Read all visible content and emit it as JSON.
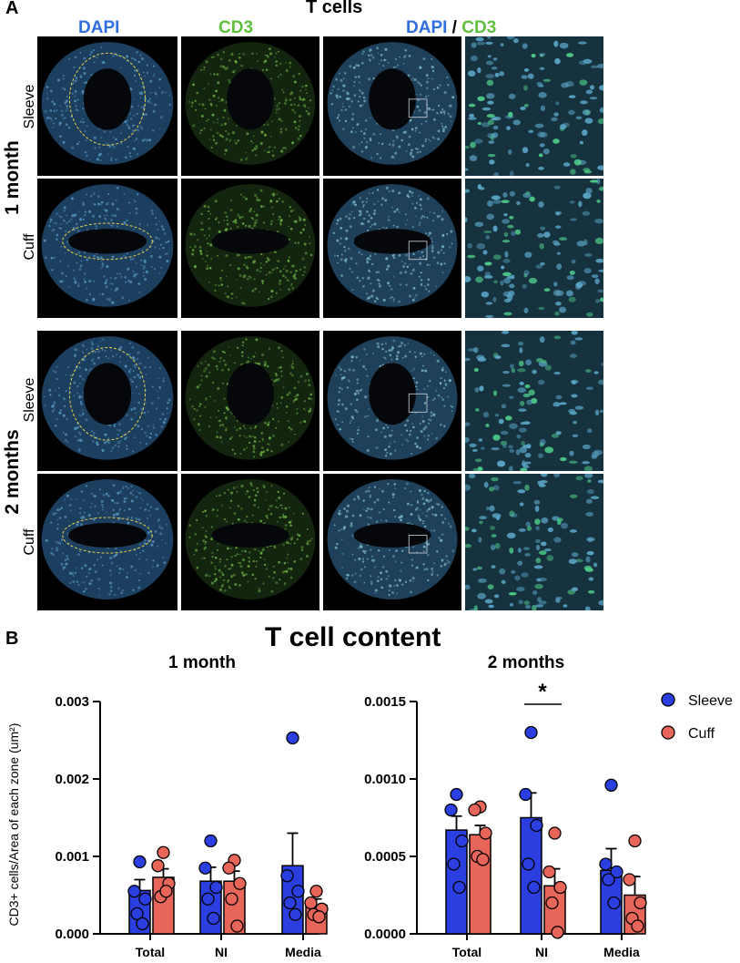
{
  "panel_a": {
    "letter": "A",
    "title": "T cells",
    "columns": {
      "dapi": "DAPI",
      "cd3": "CD3",
      "merge_dapi": "DAPI",
      "merge_sep": " / ",
      "merge_cd3": "CD3"
    },
    "time_labels": [
      "1 month",
      "2 months"
    ],
    "row_labels": [
      "Sleeve",
      "Cuff",
      "Sleeve",
      "Cuff"
    ],
    "colors": {
      "dapi": "#2f6fe0",
      "cd3": "#5fbf3f",
      "outline": "#e6d24a"
    }
  },
  "panel_b": {
    "letter": "B",
    "title": "T cell content",
    "ylabel": "CD3+ cells/Area of each zone (um²)",
    "legend": [
      {
        "name": "Sleeve",
        "color": "#2b3fe0"
      },
      {
        "name": "Cuff",
        "color": "#e8655a"
      }
    ]
  },
  "chart_data": [
    {
      "type": "bar",
      "title": "1 month",
      "categories": [
        "Total",
        "NI",
        "Media"
      ],
      "ylim": [
        0,
        0.003
      ],
      "yticks": [
        "0.000",
        "0.001",
        "0.002",
        "0.003"
      ],
      "yticks_values": [
        0,
        0.001,
        0.002,
        0.003
      ],
      "series": [
        {
          "name": "Sleeve",
          "color": "#2b3fe0",
          "means": [
            0.00056,
            0.00068,
            0.00088
          ],
          "sem": [
            0.00014,
            0.00018,
            0.00042
          ],
          "points": [
            [
              0.00093,
              0.00055,
              0.00045,
              0.00026,
              0.00013
            ],
            [
              0.0012,
              0.00085,
              0.0006,
              0.00045,
              0.0002
            ],
            [
              0.00253,
              0.00075,
              0.00055,
              0.0004,
              0.00025
            ]
          ]
        },
        {
          "name": "Cuff",
          "color": "#e8655a",
          "means": [
            0.00073,
            0.00068,
            0.00037
          ],
          "sem": [
            0.00011,
            0.00013,
            8e-05
          ],
          "points": [
            [
              0.00105,
              0.00088,
              0.00065,
              0.00048,
              0.00055
            ],
            [
              0.00095,
              0.00085,
              0.00065,
              0.00045,
              0.0001
            ],
            [
              0.00055,
              0.0004,
              0.00032,
              0.00025,
              0.00022
            ]
          ]
        }
      ],
      "significance": []
    },
    {
      "type": "bar",
      "title": "2 months",
      "categories": [
        "Total",
        "NI",
        "Media"
      ],
      "ylim": [
        0,
        0.0015
      ],
      "yticks": [
        "0.0000",
        "0.0005",
        "0.0010",
        "0.0015"
      ],
      "yticks_values": [
        0,
        0.0005,
        0.001,
        0.0015
      ],
      "series": [
        {
          "name": "Sleeve",
          "color": "#2b3fe0",
          "means": [
            0.00067,
            0.00075,
            0.00041
          ],
          "sem": [
            9e-05,
            0.00016,
            0.00014
          ],
          "points": [
            [
              0.0009,
              0.0008,
              0.0006,
              0.00045,
              0.0003
            ],
            [
              0.0013,
              0.0009,
              0.0007,
              0.00045,
              0.0003
            ],
            [
              0.00096,
              0.00045,
              0.0004,
              0.00035,
              0.0002
            ]
          ]
        },
        {
          "name": "Cuff",
          "color": "#e8655a",
          "means": [
            0.00064,
            0.00031,
            0.00025
          ],
          "sem": [
            6e-05,
            0.00011,
            0.00012
          ],
          "points": [
            [
              0.00082,
              0.0008,
              0.00065,
              0.0005,
              0.00048
            ],
            [
              0.00065,
              0.0004,
              0.0003,
              0.0002,
              1e-05
            ],
            [
              0.0006,
              0.00035,
              0.0002,
              0.0001,
              5e-05
            ]
          ]
        }
      ],
      "significance": [
        {
          "category": "NI",
          "label": "*"
        }
      ]
    }
  ]
}
